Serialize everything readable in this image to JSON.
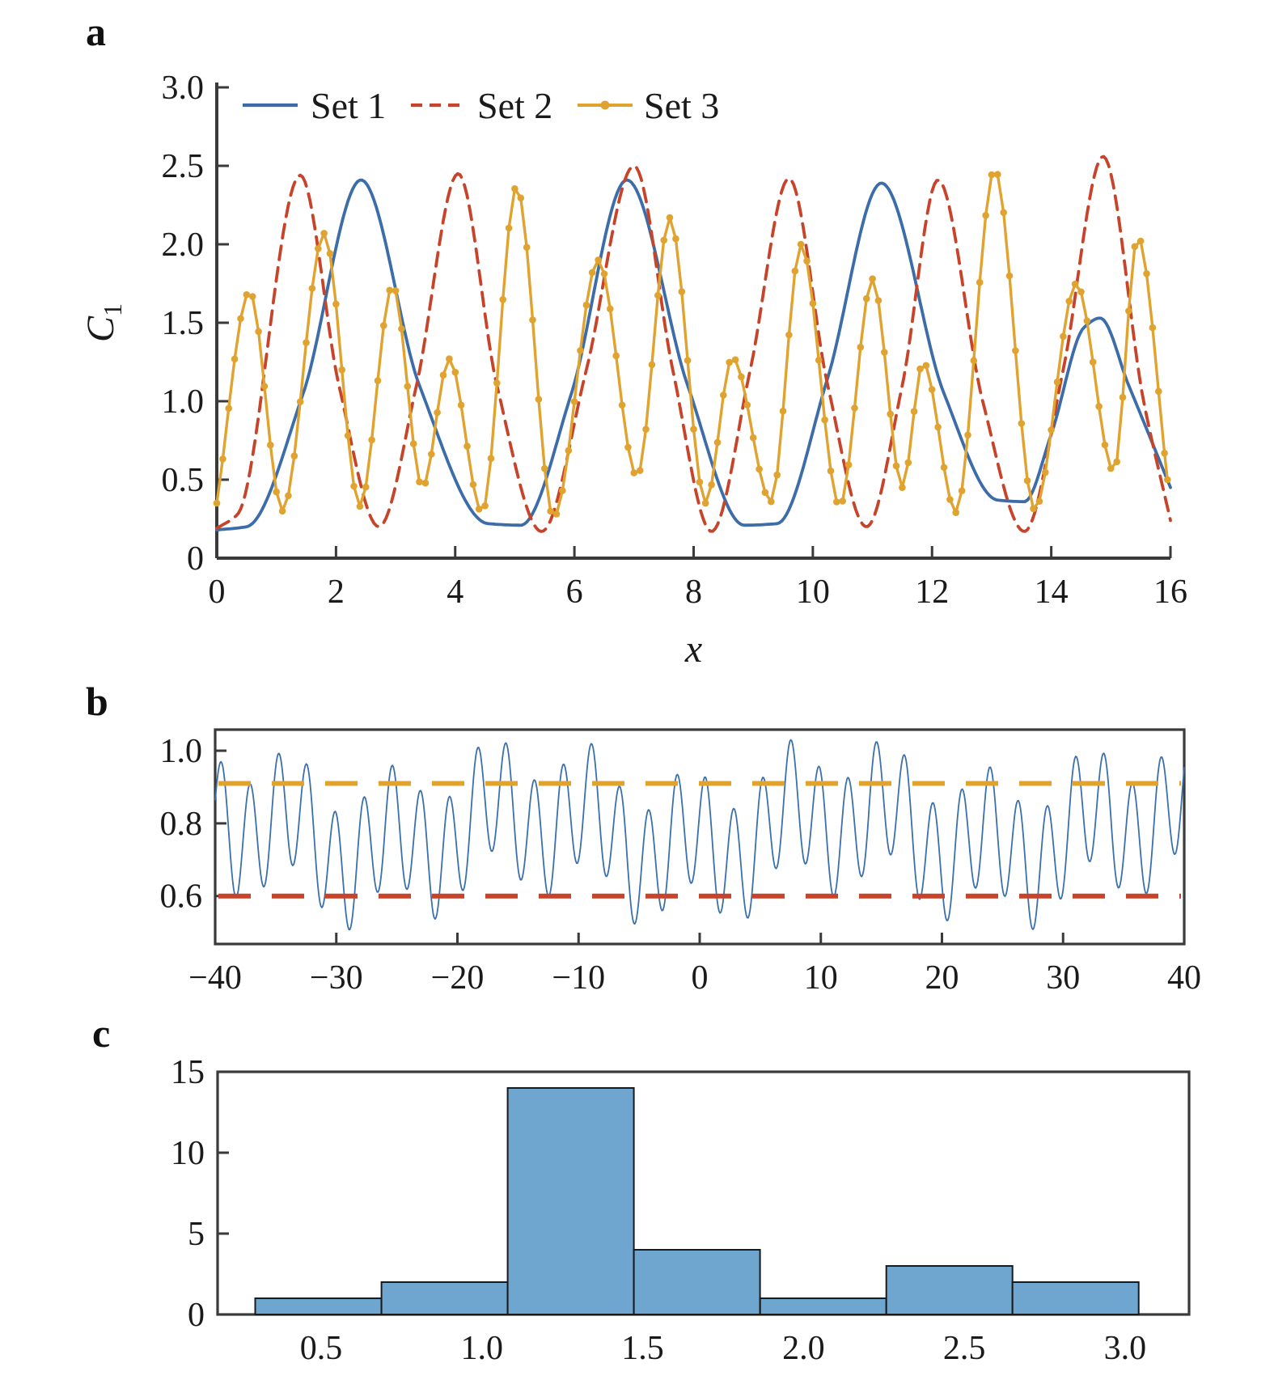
{
  "figure": {
    "background": "#ffffff",
    "panels": [
      {
        "id": "a",
        "label": "a"
      },
      {
        "id": "b",
        "label": "b"
      },
      {
        "id": "c",
        "label": "c"
      }
    ]
  },
  "chart_data": [
    {
      "id": "a",
      "type": "line",
      "panel_label": "a",
      "xlabel": "x",
      "ylabel": "C",
      "ylabel_sub": "1",
      "xlim": [
        0,
        16
      ],
      "ylim": [
        0,
        3
      ],
      "xticks": [
        0,
        2,
        4,
        6,
        8,
        10,
        12,
        14,
        16
      ],
      "xtick_labels": [
        "0",
        "2",
        "4",
        "6",
        "8",
        "10",
        "12",
        "14",
        "16"
      ],
      "yticks": [
        0,
        0.5,
        1,
        1.5,
        2,
        2.5,
        3
      ],
      "ytick_labels": [
        "0",
        "0.5",
        "1.0",
        "1.5",
        "2.0",
        "2.5",
        "3.0"
      ],
      "legend": {
        "position": "top-left",
        "orientation": "horizontal",
        "entries": [
          "Set 1",
          "Set 2",
          "Set 3"
        ]
      },
      "series": [
        {
          "name": "Set 1",
          "color": "#3c6da9",
          "style": "solid",
          "line_width": 3.8,
          "markers": false,
          "keypoints": [
            [
              0,
              0.18
            ],
            [
              0.5,
              0.2
            ],
            [
              1.45,
              1.05
            ],
            [
              2.42,
              2.41
            ],
            [
              3.4,
              1.1
            ],
            [
              4.55,
              0.22
            ],
            [
              5.1,
              0.21
            ],
            [
              5.95,
              1.05
            ],
            [
              6.88,
              2.41
            ],
            [
              7.9,
              1.1
            ],
            [
              8.85,
              0.21
            ],
            [
              9.4,
              0.22
            ],
            [
              10.25,
              1.15
            ],
            [
              11.15,
              2.39
            ],
            [
              12.2,
              1.05
            ],
            [
              13.1,
              0.37
            ],
            [
              13.55,
              0.36
            ],
            [
              14.0,
              0.79
            ],
            [
              14.55,
              1.47
            ],
            [
              14.82,
              1.53
            ],
            [
              15.3,
              1.1
            ],
            [
              16,
              0.45
            ]
          ]
        },
        {
          "name": "Set 2",
          "color": "#c7442a",
          "style": "dashed",
          "line_width": 3.8,
          "markers": false,
          "keypoints": [
            [
              0,
              0.19
            ],
            [
              0.35,
              0.28
            ],
            [
              1.4,
              2.44
            ],
            [
              2.05,
              1.1
            ],
            [
              2.72,
              0.2
            ],
            [
              3.35,
              1.1
            ],
            [
              4.05,
              2.45
            ],
            [
              4.7,
              1.1
            ],
            [
              5.45,
              0.17
            ],
            [
              6.2,
              1.2
            ],
            [
              7.0,
              2.5
            ],
            [
              7.65,
              1.2
            ],
            [
              8.3,
              0.17
            ],
            [
              8.95,
              1.2
            ],
            [
              9.6,
              2.42
            ],
            [
              10.25,
              1.1
            ],
            [
              10.9,
              0.2
            ],
            [
              11.5,
              1.1
            ],
            [
              12.1,
              2.41
            ],
            [
              12.85,
              1.0
            ],
            [
              13.55,
              0.17
            ],
            [
              14.2,
              1.2
            ],
            [
              14.87,
              2.56
            ],
            [
              15.55,
              1.0
            ],
            [
              16,
              0.24
            ]
          ]
        },
        {
          "name": "Set 3",
          "color": "#e0a330",
          "style": "solid",
          "line_width": 3.4,
          "markers": true,
          "marker_interval": 0.1,
          "keypoints": [
            [
              0,
              0.35
            ],
            [
              0.55,
              1.7
            ],
            [
              1.1,
              0.3
            ],
            [
              1.8,
              2.07
            ],
            [
              2.4,
              0.33
            ],
            [
              2.95,
              1.74
            ],
            [
              3.45,
              0.45
            ],
            [
              3.9,
              1.27
            ],
            [
              4.45,
              0.29
            ],
            [
              5.03,
              2.37
            ],
            [
              5.65,
              0.26
            ],
            [
              6.4,
              1.9
            ],
            [
              7.05,
              0.52
            ],
            [
              7.6,
              2.17
            ],
            [
              8.2,
              0.35
            ],
            [
              8.65,
              1.28
            ],
            [
              9.3,
              0.36
            ],
            [
              9.8,
              2.0
            ],
            [
              10.45,
              0.33
            ],
            [
              11.0,
              1.78
            ],
            [
              11.5,
              0.45
            ],
            [
              11.85,
              1.25
            ],
            [
              12.4,
              0.29
            ],
            [
              13.05,
              2.48
            ],
            [
              13.72,
              0.31
            ],
            [
              14.42,
              1.75
            ],
            [
              15.05,
              0.55
            ],
            [
              15.45,
              2.05
            ],
            [
              15.95,
              0.5
            ]
          ]
        }
      ]
    },
    {
      "id": "b",
      "type": "line",
      "panel_label": "b",
      "xlim": [
        -40,
        40
      ],
      "ylim": [
        0.468,
        1.058
      ],
      "xticks": [
        -40,
        -30,
        -20,
        -10,
        0,
        10,
        20,
        30,
        40
      ],
      "xtick_labels": [
        "−40",
        "−30",
        "−20",
        "−10",
        "0",
        "10",
        "20",
        "30",
        "40"
      ],
      "yticks": [
        0.6,
        0.8,
        1.0
      ],
      "ytick_labels": [
        "0.6",
        "0.8",
        "1.0"
      ],
      "signal": {
        "name": "oscillating-trace",
        "color": "#3b70ab",
        "line_width": 1.8,
        "baseline": 0.775,
        "sample_step": 0.08,
        "components": [
          {
            "amplitude": 0.16,
            "period": 2.35,
            "phase": 0.3
          },
          {
            "amplitude": 0.07,
            "period": 8.2,
            "phase": 2.2
          },
          {
            "amplitude": 0.05,
            "period": 26.0,
            "phase": 5.0
          }
        ]
      },
      "thresholds": [
        {
          "name": "upper-threshold",
          "value": 0.91,
          "color": "#e0a330",
          "style": "dashed",
          "line_width": 6
        },
        {
          "name": "lower-threshold",
          "value": 0.6,
          "color": "#c7442a",
          "style": "dashed",
          "line_width": 6
        }
      ]
    },
    {
      "id": "c",
      "type": "histogram",
      "panel_label": "c",
      "xlim": [
        0.178,
        3.199
      ],
      "ylim": [
        0,
        15
      ],
      "xticks": [
        0.5,
        1.0,
        1.5,
        2.0,
        2.5,
        3.0
      ],
      "xtick_labels": [
        "0.5",
        "1.0",
        "1.5",
        "2.0",
        "2.5",
        "3.0"
      ],
      "yticks": [
        0,
        5,
        10,
        15
      ],
      "ytick_labels": [
        "0",
        "5",
        "10",
        "15"
      ],
      "bins": {
        "edges": [
          0.295,
          0.6875,
          1.08,
          1.4725,
          1.865,
          2.2575,
          2.65,
          3.0425
        ],
        "counts": [
          1,
          2,
          14,
          4,
          1,
          3,
          2
        ]
      },
      "bar_color": "#6fa6cf",
      "bar_edge_color": "#1a1a1a"
    }
  ]
}
